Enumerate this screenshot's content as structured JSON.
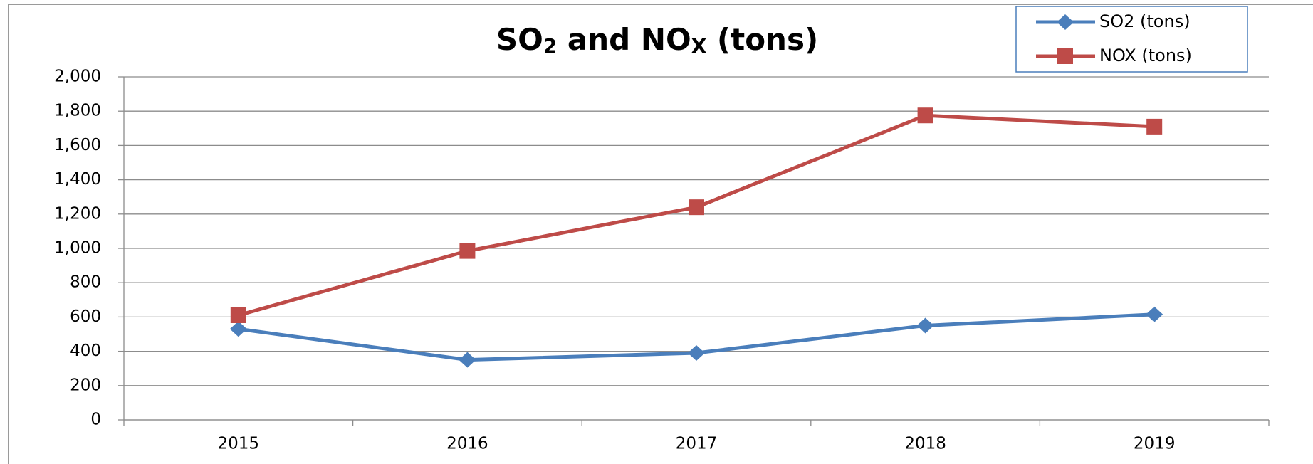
{
  "chart_data": {
    "type": "line",
    "title": [
      {
        "text": "SO"
      },
      {
        "text": "2",
        "sub": true
      },
      {
        "text": " and NO"
      },
      {
        "text": "X",
        "sub": true
      },
      {
        "text": " (tons)"
      }
    ],
    "categories": [
      "2015",
      "2016",
      "2017",
      "2018",
      "2019"
    ],
    "series": [
      {
        "name": "SO2 (tons)",
        "color": "#4a7ebb",
        "marker": "diamond",
        "values": [
          530,
          350,
          390,
          550,
          615
        ]
      },
      {
        "name": "NOX (tons)",
        "color": "#be4b48",
        "marker": "square",
        "values": [
          610,
          985,
          1240,
          1775,
          1710
        ]
      }
    ],
    "ylim": [
      0,
      2000
    ],
    "yticks": [
      0,
      200,
      400,
      600,
      800,
      {
        "value": 1000,
        "label": "1,000"
      },
      {
        "value": 1200,
        "label": "1,200"
      },
      {
        "value": 1400,
        "label": "1,400"
      },
      {
        "value": 1600,
        "label": "1,600"
      },
      {
        "value": 1800,
        "label": "1,800"
      },
      {
        "value": 2000,
        "label": "2,000"
      }
    ],
    "grid": true,
    "legend": "top-right"
  }
}
